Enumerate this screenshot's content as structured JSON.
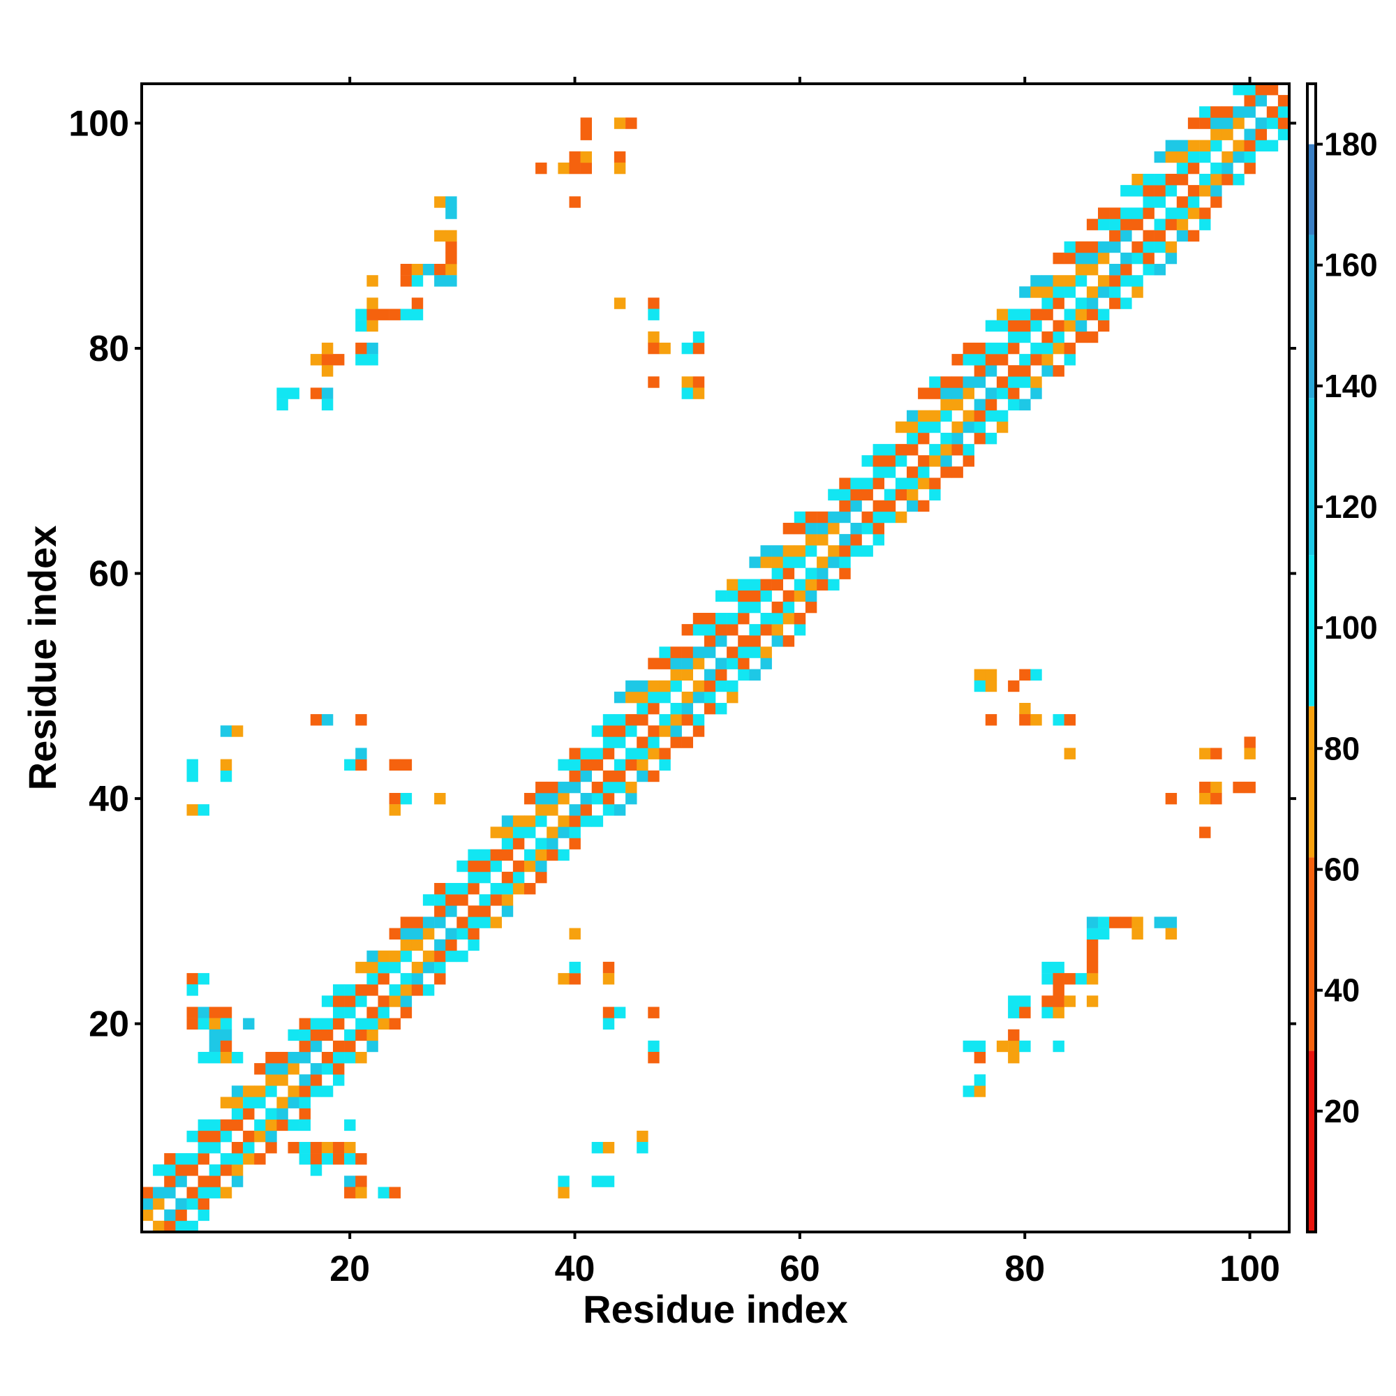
{
  "chart_data": {
    "type": "heatmap",
    "title": "",
    "xlabel": "Residue index",
    "ylabel": "Residue index",
    "xlim": [
      1.5,
      103.5
    ],
    "ylim": [
      1.5,
      103.5
    ],
    "xticks": [
      20,
      40,
      60,
      80,
      100
    ],
    "yticks": [
      20,
      40,
      60,
      80,
      100
    ],
    "xtick_labels": [
      "20",
      "40",
      "60",
      "80",
      "100"
    ],
    "ytick_labels": [
      "20",
      "40",
      "60",
      "80",
      "100"
    ],
    "grid": false,
    "colorbar": {
      "range": [
        0,
        190
      ],
      "ticks": [
        20,
        40,
        60,
        80,
        100,
        120,
        140,
        160,
        180
      ],
      "tick_labels": [
        "20",
        "40",
        "60",
        "80",
        "100",
        "120",
        "140",
        "160",
        "180"
      ],
      "bands": [
        {
          "from": 0,
          "to": 30,
          "color": "#e8140c"
        },
        {
          "from": 30,
          "to": 62,
          "color": "#f5620e"
        },
        {
          "from": 62,
          "to": 87,
          "color": "#f7a10e"
        },
        {
          "from": 87,
          "to": 112,
          "color": "#12e6f2"
        },
        {
          "from": 112,
          "to": 138,
          "color": "#1ec8e6"
        },
        {
          "from": 138,
          "to": 165,
          "color": "#2aa8d8"
        },
        {
          "from": 165,
          "to": 180,
          "color": "#3a7fc4"
        },
        {
          "from": 180,
          "to": 190,
          "color": "#ffffff"
        }
      ]
    },
    "band_cells": {
      "description": "near-diagonal contacts |i-j|<=band; value pattern alternates along diagonal",
      "max_offset": 5
    },
    "cells": [
      [
        6,
        39,
        70
      ],
      [
        7,
        39,
        100
      ],
      [
        6,
        42,
        100
      ],
      [
        6,
        43,
        100
      ],
      [
        9,
        42,
        100
      ],
      [
        9,
        43,
        70
      ],
      [
        9,
        46,
        120
      ],
      [
        10,
        46,
        70
      ],
      [
        17,
        47,
        45
      ],
      [
        18,
        47,
        120
      ],
      [
        21,
        47,
        45
      ],
      [
        20,
        43,
        100
      ],
      [
        21,
        43,
        45
      ],
      [
        21,
        44,
        120
      ],
      [
        24,
        43,
        45
      ],
      [
        25,
        43,
        45
      ],
      [
        24,
        40,
        45
      ],
      [
        25,
        40,
        100
      ],
      [
        24,
        39,
        70
      ],
      [
        28,
        40,
        70
      ],
      [
        6,
        24,
        45
      ],
      [
        7,
        24,
        100
      ],
      [
        6,
        23,
        100
      ],
      [
        6,
        21,
        45
      ],
      [
        7,
        21,
        120
      ],
      [
        8,
        21,
        45
      ],
      [
        9,
        21,
        45
      ],
      [
        6,
        20,
        45
      ],
      [
        7,
        20,
        100
      ],
      [
        8,
        20,
        70
      ],
      [
        9,
        20,
        100
      ],
      [
        11,
        20,
        120
      ],
      [
        8,
        19,
        120
      ],
      [
        9,
        19,
        120
      ],
      [
        8,
        18,
        120
      ],
      [
        9,
        18,
        45
      ],
      [
        7,
        17,
        100
      ],
      [
        8,
        17,
        100
      ],
      [
        9,
        17,
        70
      ],
      [
        10,
        17,
        100
      ],
      [
        16,
        11,
        100
      ],
      [
        20,
        11,
        100
      ],
      [
        15,
        9,
        45
      ],
      [
        16,
        9,
        100
      ],
      [
        17,
        9,
        45
      ],
      [
        18,
        9,
        70
      ],
      [
        19,
        9,
        45
      ],
      [
        20,
        9,
        70
      ],
      [
        16,
        8,
        100
      ],
      [
        17,
        8,
        45
      ],
      [
        18,
        8,
        100
      ],
      [
        19,
        8,
        45
      ],
      [
        20,
        8,
        100
      ],
      [
        21,
        8,
        45
      ],
      [
        17,
        7,
        100
      ],
      [
        20,
        6,
        120
      ],
      [
        21,
        6,
        45
      ],
      [
        20,
        5,
        45
      ],
      [
        21,
        5,
        70
      ],
      [
        23,
        5,
        100
      ],
      [
        24,
        5,
        45
      ],
      [
        39,
        24,
        70
      ],
      [
        40,
        24,
        45
      ],
      [
        40,
        25,
        100
      ],
      [
        43,
        25,
        45
      ],
      [
        43,
        24,
        70
      ],
      [
        43,
        21,
        45
      ],
      [
        44,
        21,
        100
      ],
      [
        47,
        21,
        45
      ],
      [
        43,
        20,
        100
      ],
      [
        47,
        18,
        100
      ],
      [
        47,
        17,
        45
      ],
      [
        42,
        9,
        100
      ],
      [
        43,
        9,
        70
      ],
      [
        46,
        10,
        70
      ],
      [
        46,
        9,
        100
      ],
      [
        39,
        6,
        100
      ],
      [
        39,
        5,
        70
      ],
      [
        42,
        6,
        100
      ],
      [
        43,
        6,
        100
      ],
      [
        40,
        28,
        70
      ],
      [
        14,
        76,
        100
      ],
      [
        15,
        76,
        100
      ],
      [
        14,
        75,
        100
      ],
      [
        17,
        76,
        45
      ],
      [
        18,
        76,
        120
      ],
      [
        18,
        75,
        100
      ],
      [
        17,
        79,
        70
      ],
      [
        18,
        79,
        45
      ],
      [
        18,
        80,
        70
      ],
      [
        18,
        78,
        70
      ],
      [
        19,
        79,
        45
      ],
      [
        21,
        79,
        100
      ],
      [
        22,
        79,
        100
      ],
      [
        21,
        80,
        45
      ],
      [
        22,
        80,
        120
      ],
      [
        21,
        82,
        100
      ],
      [
        22,
        82,
        70
      ],
      [
        21,
        83,
        100
      ],
      [
        22,
        83,
        45
      ],
      [
        23,
        83,
        45
      ],
      [
        24,
        83,
        45
      ],
      [
        25,
        83,
        100
      ],
      [
        26,
        83,
        100
      ],
      [
        22,
        84,
        70
      ],
      [
        26,
        84,
        45
      ],
      [
        22,
        86,
        70
      ],
      [
        25,
        87,
        45
      ],
      [
        26,
        87,
        70
      ],
      [
        25,
        86,
        45
      ],
      [
        26,
        86,
        100
      ],
      [
        27,
        87,
        120
      ],
      [
        28,
        87,
        45
      ],
      [
        29,
        87,
        70
      ],
      [
        28,
        86,
        120
      ],
      [
        29,
        86,
        120
      ],
      [
        29,
        88,
        45
      ],
      [
        29,
        89,
        45
      ],
      [
        28,
        90,
        70
      ],
      [
        29,
        90,
        70
      ],
      [
        28,
        93,
        70
      ],
      [
        29,
        93,
        120
      ],
      [
        29,
        92,
        120
      ],
      [
        37,
        96,
        45
      ],
      [
        39,
        96,
        70
      ],
      [
        40,
        96,
        45
      ],
      [
        41,
        96,
        45
      ],
      [
        40,
        97,
        45
      ],
      [
        41,
        97,
        70
      ],
      [
        44,
        97,
        45
      ],
      [
        44,
        96,
        70
      ],
      [
        41,
        99,
        45
      ],
      [
        41,
        100,
        45
      ],
      [
        44,
        100,
        70
      ],
      [
        45,
        100,
        45
      ],
      [
        40,
        93,
        45
      ],
      [
        44,
        84,
        70
      ],
      [
        47,
        84,
        45
      ],
      [
        47,
        83,
        100
      ],
      [
        47,
        81,
        70
      ],
      [
        47,
        80,
        45
      ],
      [
        48,
        80,
        70
      ],
      [
        50,
        80,
        100
      ],
      [
        51,
        80,
        45
      ],
      [
        51,
        81,
        100
      ],
      [
        47,
        77,
        45
      ],
      [
        50,
        77,
        70
      ],
      [
        51,
        77,
        45
      ],
      [
        50,
        76,
        100
      ],
      [
        51,
        76,
        70
      ],
      [
        76,
        51,
        70
      ],
      [
        77,
        51,
        70
      ],
      [
        76,
        50,
        100
      ],
      [
        77,
        50,
        70
      ],
      [
        80,
        51,
        45
      ],
      [
        81,
        51,
        100
      ],
      [
        79,
        50,
        45
      ],
      [
        77,
        47,
        45
      ],
      [
        80,
        48,
        70
      ],
      [
        80,
        47,
        45
      ],
      [
        81,
        47,
        70
      ],
      [
        83,
        47,
        100
      ],
      [
        84,
        47,
        45
      ],
      [
        84,
        44,
        70
      ],
      [
        96,
        44,
        70
      ],
      [
        97,
        44,
        45
      ],
      [
        100,
        45,
        45
      ],
      [
        100,
        44,
        70
      ],
      [
        93,
        40,
        45
      ],
      [
        96,
        41,
        45
      ],
      [
        96,
        40,
        70
      ],
      [
        97,
        41,
        70
      ],
      [
        97,
        40,
        45
      ],
      [
        99,
        41,
        45
      ],
      [
        100,
        41,
        45
      ],
      [
        96,
        37,
        45
      ],
      [
        76,
        18,
        100
      ],
      [
        75,
        18,
        100
      ],
      [
        76,
        17,
        45
      ],
      [
        78,
        18,
        70
      ],
      [
        79,
        18,
        70
      ],
      [
        79,
        19,
        45
      ],
      [
        80,
        18,
        100
      ],
      [
        79,
        17,
        70
      ],
      [
        75,
        14,
        100
      ],
      [
        76,
        14,
        70
      ],
      [
        76,
        15,
        100
      ],
      [
        83,
        18,
        100
      ],
      [
        79,
        22,
        100
      ],
      [
        80,
        22,
        100
      ],
      [
        79,
        21,
        100
      ],
      [
        80,
        21,
        45
      ],
      [
        82,
        21,
        100
      ],
      [
        83,
        21,
        70
      ],
      [
        82,
        22,
        45
      ],
      [
        83,
        22,
        45
      ],
      [
        84,
        22,
        70
      ],
      [
        86,
        22,
        70
      ],
      [
        82,
        25,
        100
      ],
      [
        83,
        25,
        100
      ],
      [
        82,
        24,
        100
      ],
      [
        83,
        24,
        45
      ],
      [
        84,
        24,
        45
      ],
      [
        85,
        24,
        100
      ],
      [
        83,
        23,
        45
      ],
      [
        86,
        24,
        70
      ],
      [
        86,
        25,
        45
      ],
      [
        86,
        26,
        45
      ],
      [
        86,
        27,
        45
      ],
      [
        86,
        28,
        100
      ],
      [
        87,
        28,
        100
      ],
      [
        86,
        29,
        120
      ],
      [
        87,
        29,
        100
      ],
      [
        88,
        29,
        45
      ],
      [
        89,
        29,
        45
      ],
      [
        90,
        29,
        70
      ],
      [
        90,
        28,
        70
      ],
      [
        92,
        29,
        120
      ],
      [
        93,
        29,
        120
      ],
      [
        93,
        28,
        70
      ]
    ]
  }
}
